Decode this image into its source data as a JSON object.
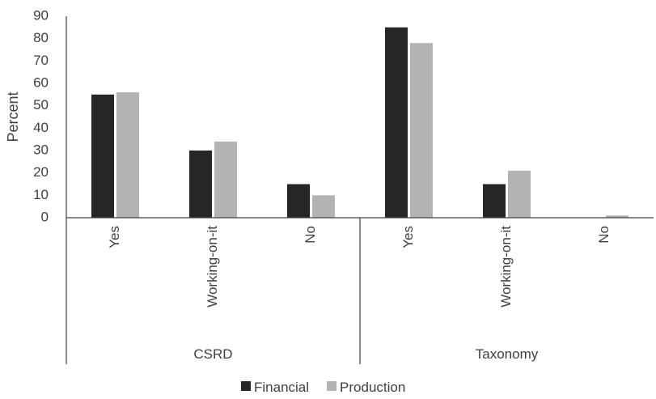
{
  "chart_data": {
    "type": "bar",
    "ylabel": "Percent",
    "ylim": [
      0,
      90
    ],
    "yticks": [
      0,
      10,
      20,
      30,
      40,
      50,
      60,
      70,
      80,
      90
    ],
    "grid": false,
    "legend_position": "bottom",
    "groups": [
      {
        "name": "CSRD",
        "categories": [
          "Yes",
          "Working-on-it",
          "No"
        ]
      },
      {
        "name": "Taxonomy",
        "categories": [
          "Yes",
          "Working-on-it",
          "No"
        ]
      }
    ],
    "series": [
      {
        "name": "Financial",
        "color": "#262626",
        "values": [
          55,
          30,
          15,
          85,
          15,
          0
        ]
      },
      {
        "name": "Production",
        "color": "#b3b3b3",
        "values": [
          56,
          34,
          10,
          78,
          21,
          1
        ]
      }
    ]
  }
}
